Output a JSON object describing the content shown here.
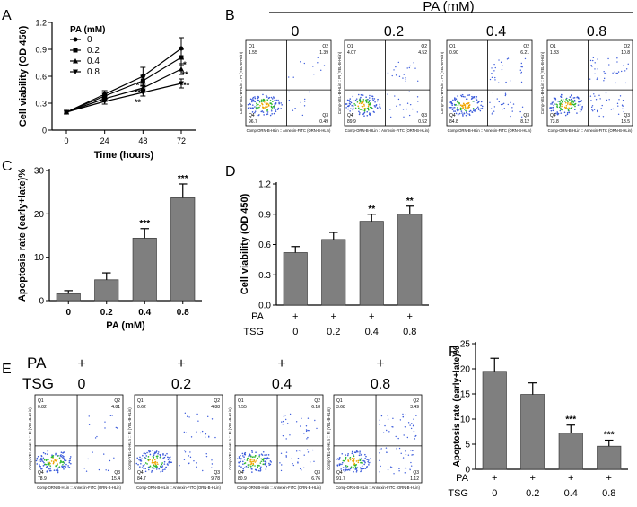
{
  "chart_data": [
    {
      "id": "A",
      "panel_label": "A",
      "type": "line",
      "title": "",
      "xlabel": "Time (hours)",
      "ylabel": "Cell viability (OD 450)",
      "x": [
        0,
        24,
        48,
        72
      ],
      "xticks": [
        "0",
        "24",
        "48",
        "72"
      ],
      "ylim": [
        0,
        1.2
      ],
      "yticks": [
        "0",
        "0.3",
        "0.6",
        "0.9",
        "1.2"
      ],
      "legend_title": "PA (mM)",
      "legend_position": "top-left",
      "series": [
        {
          "name": "0",
          "values": [
            0.2,
            0.4,
            0.6,
            0.91
          ],
          "errors": [
            0.02,
            0.04,
            0.1,
            0.12
          ],
          "marker": "circle"
        },
        {
          "name": "0.2",
          "values": [
            0.2,
            0.38,
            0.55,
            0.81
          ],
          "errors": [
            0.02,
            0.03,
            0.06,
            0.09
          ],
          "marker": "square"
        },
        {
          "name": "0.4",
          "values": [
            0.2,
            0.35,
            0.47,
            0.68
          ],
          "errors": [
            0.02,
            0.03,
            0.05,
            0.06
          ],
          "marker": "triangle-up"
        },
        {
          "name": "0.8",
          "values": [
            0.2,
            0.32,
            0.42,
            0.52
          ],
          "errors": [
            0.02,
            0.03,
            0.04,
            0.05
          ],
          "marker": "triangle-down"
        }
      ],
      "annotations": [
        {
          "x": 48,
          "y": 0.5,
          "text": "*"
        },
        {
          "x": 48,
          "y": 0.42,
          "text": "**"
        },
        {
          "x": 48,
          "y": 0.31,
          "text": "**"
        },
        {
          "x": 72,
          "y": 0.73,
          "text": "*"
        },
        {
          "x": 72,
          "y": 0.62,
          "text": "**"
        },
        {
          "x": 72,
          "y": 0.5,
          "text": "***"
        }
      ]
    },
    {
      "id": "C",
      "panel_label": "C",
      "type": "bar",
      "xlabel": "PA (mM)",
      "ylabel": "Apoptosis rate (early+late)%",
      "categories": [
        "0",
        "0.2",
        "0.4",
        "0.8"
      ],
      "values": [
        1.6,
        4.8,
        14.4,
        23.7
      ],
      "errors": [
        0.7,
        1.6,
        2.2,
        3.2
      ],
      "significance": [
        "",
        "",
        "***",
        "***"
      ],
      "ylim": [
        0,
        30
      ],
      "yticks": [
        "0",
        "10",
        "20",
        "30"
      ]
    },
    {
      "id": "D",
      "panel_label": "D",
      "type": "bar",
      "xlabel": "",
      "ylabel": "Cell viability (OD 450)",
      "categories": [
        "0",
        "0.2",
        "0.4",
        "0.8"
      ],
      "values": [
        0.52,
        0.65,
        0.83,
        0.9
      ],
      "errors": [
        0.06,
        0.07,
        0.07,
        0.08
      ],
      "significance": [
        "",
        "",
        "**",
        "**"
      ],
      "ylim": [
        0,
        1.2
      ],
      "yticks": [
        "0.0",
        "0.3",
        "0.6",
        "0.9",
        "1.2"
      ],
      "row_labels": [
        "PA",
        "TSG"
      ],
      "pa_row": [
        "+",
        "+",
        "+",
        "+"
      ],
      "tsg_row": [
        "0",
        "0.2",
        "0.4",
        "0.8"
      ]
    },
    {
      "id": "F",
      "panel_label": "F",
      "type": "bar",
      "xlabel": "",
      "ylabel": "Apoptosis rate (early+late)%",
      "categories": [
        "0",
        "0.2",
        "0.4",
        "0.8"
      ],
      "values": [
        19.5,
        14.9,
        7.2,
        4.6
      ],
      "errors": [
        2.6,
        2.3,
        1.6,
        1.2
      ],
      "significance": [
        "",
        "",
        "***",
        "***"
      ],
      "ylim": [
        0,
        25
      ],
      "yticks": [
        "0",
        "5",
        "10",
        "15",
        "20",
        "25"
      ],
      "row_labels": [
        "PA",
        "TSG"
      ],
      "pa_row": [
        "+",
        "+",
        "+",
        "+"
      ],
      "tsg_row": [
        "0",
        "0.2",
        "0.4",
        "0.8"
      ]
    }
  ],
  "flow_panels": {
    "B": {
      "label": "B",
      "header_title": "PA (mM)",
      "header_values": [
        "0",
        "0.2",
        "0.4",
        "0.8"
      ],
      "xaxis_label": "Comp-ORN-B-HLin :: Annexin-FITC (ORN-B-HLin)",
      "yaxis_label": "Comp-YEL-B-HLin :: PI (YEL-B-HLin)",
      "plots": [
        {
          "q": [
            "1.55",
            "1.39",
            "96.7",
            "0.49"
          ]
        },
        {
          "q": [
            "4.07",
            "4.52",
            "89.9",
            "0.52"
          ]
        },
        {
          "q": [
            "0.90",
            "6.21",
            "84.8",
            "8.12"
          ]
        },
        {
          "q": [
            "1.83",
            "10.8",
            "73.8",
            "13.5"
          ]
        }
      ]
    },
    "E": {
      "label": "E",
      "pa_label": "PA",
      "tsg_label": "TSG",
      "pa_values": [
        "+",
        "+",
        "+",
        "+"
      ],
      "tsg_values": [
        "0",
        "0.2",
        "0.4",
        "0.8"
      ],
      "xaxis_label": "Comp-ORN-B-HLin :: Annexin-FITC (ORN-B-HLin)",
      "yaxis_label": "Comp-YEL-B-HLin :: PI (YEL-B-HLin)",
      "plots": [
        {
          "q": [
            "0.82",
            "4.81",
            "78.9",
            "15.4"
          ]
        },
        {
          "q": [
            "0.62",
            "4.88",
            "84.7",
            "9.78"
          ]
        },
        {
          "q": [
            "7.55",
            "6.18",
            "80.9",
            "6.76"
          ]
        },
        {
          "q": [
            "3.68",
            "3.49",
            "91.7",
            "1.12"
          ]
        }
      ]
    }
  }
}
